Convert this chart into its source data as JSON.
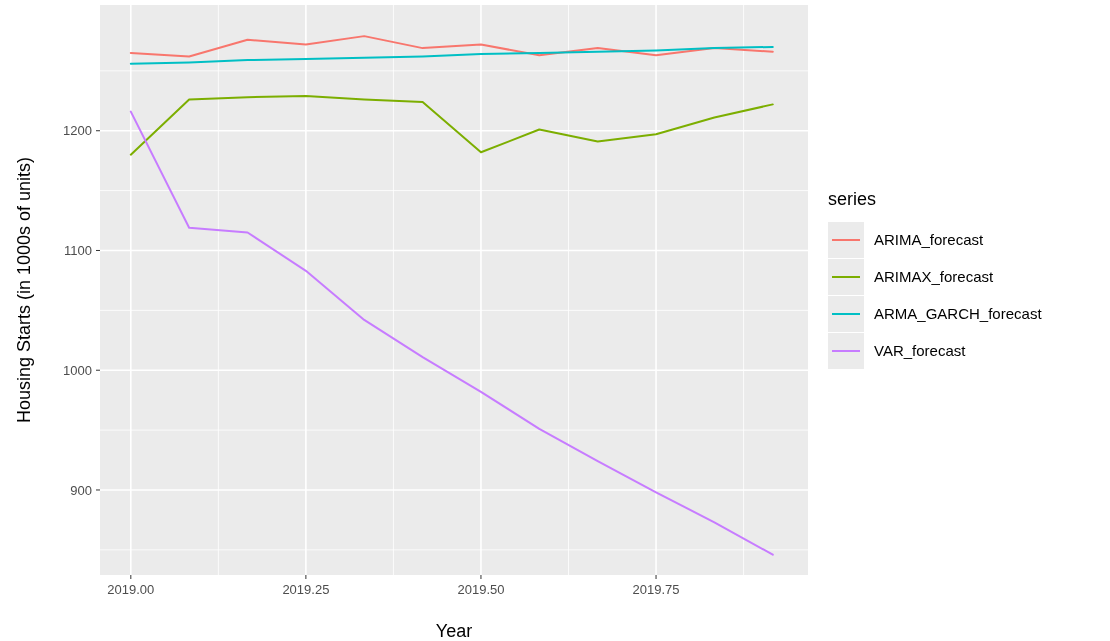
{
  "chart_data": {
    "type": "line",
    "xlabel": "Year",
    "ylabel": "Housing Starts (in 1000s of units)",
    "legend_title": "series",
    "legend": "right",
    "grid": true,
    "x": [
      2019,
      2019.0833,
      2019.1667,
      2019.25,
      2019.3333,
      2019.4167,
      2019.5,
      2019.5833,
      2019.6667,
      2019.75,
      2019.8333,
      2019.9167
    ],
    "xlim": [
      2018.956,
      2019.967
    ],
    "ylim": [
      829,
      1305
    ],
    "xticks": [
      {
        "value": 2019,
        "label": "2019.00"
      },
      {
        "value": 2019.25,
        "label": "2019.25"
      },
      {
        "value": 2019.5,
        "label": "2019.50"
      },
      {
        "value": 2019.75,
        "label": "2019.75"
      }
    ],
    "yticks": [
      900,
      1000,
      1100,
      1200
    ],
    "series": [
      {
        "name": "ARIMA_forecast",
        "color": "#f8766d",
        "values": [
          1265,
          1262,
          1276,
          1272,
          1279,
          1269,
          1272,
          1263,
          1269,
          1263,
          1269,
          1266
        ]
      },
      {
        "name": "ARIMAX_forecast",
        "color": "#7cae00",
        "values": [
          1180,
          1226,
          1228,
          1229,
          1226,
          1224,
          1182,
          1201,
          1191,
          1197,
          1211,
          1222
        ]
      },
      {
        "name": "ARMA_GARCH_forecast",
        "color": "#00bfc4",
        "values": [
          1256,
          1257,
          1259,
          1260,
          1261,
          1262,
          1264,
          1265,
          1266,
          1267,
          1269,
          1270
        ]
      },
      {
        "name": "VAR_forecast",
        "color": "#c77cff",
        "values": [
          1216,
          1119,
          1115,
          1083,
          1042,
          1011,
          982,
          951,
          924,
          898,
          873,
          846
        ]
      }
    ]
  }
}
